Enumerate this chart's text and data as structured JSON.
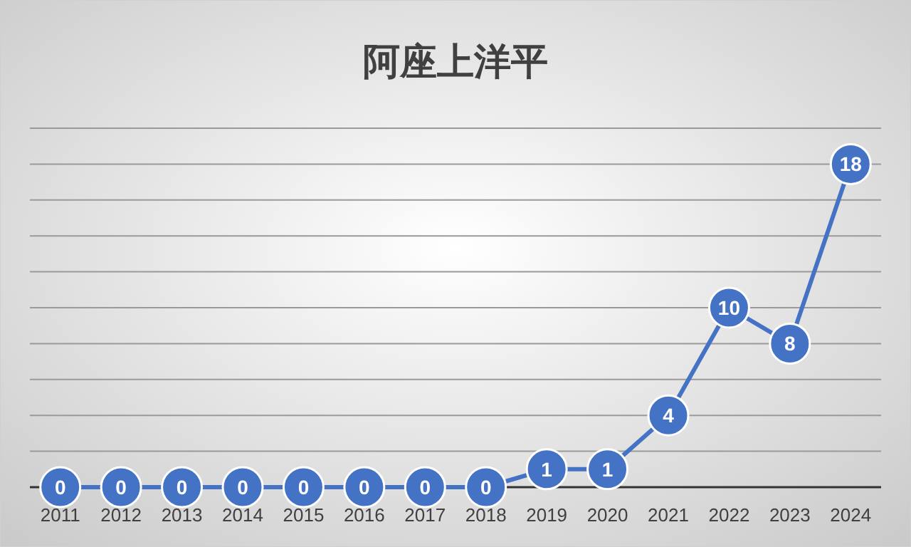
{
  "chart_data": {
    "type": "line",
    "title": "阿座上洋平",
    "categories": [
      "2011",
      "2012",
      "2013",
      "2014",
      "2015",
      "2016",
      "2017",
      "2018",
      "2019",
      "2020",
      "2021",
      "2022",
      "2023",
      "2024"
    ],
    "series": [
      {
        "color": "#4472c4",
        "values": [
          0,
          0,
          0,
          0,
          0,
          0,
          0,
          0,
          1,
          1,
          4,
          10,
          8,
          18
        ]
      }
    ],
    "ylim": [
      0,
      20
    ],
    "yticks": [
      {
        "value": 0,
        "label": null
      },
      {
        "value": 2,
        "label": null
      },
      {
        "value": 4,
        "label": null
      },
      {
        "value": 6,
        "label": null
      },
      {
        "value": 8,
        "label": null
      },
      {
        "value": 10,
        "label": null
      },
      {
        "value": 12,
        "label": null
      },
      {
        "value": 14,
        "label": null
      },
      {
        "value": 16,
        "label": null
      },
      {
        "value": 18,
        "label": null
      },
      {
        "value": 20,
        "label": null
      }
    ],
    "tick_labels": "x",
    "grid": "y",
    "marker": "circle",
    "line_style": "solid",
    "data_labels": true
  }
}
